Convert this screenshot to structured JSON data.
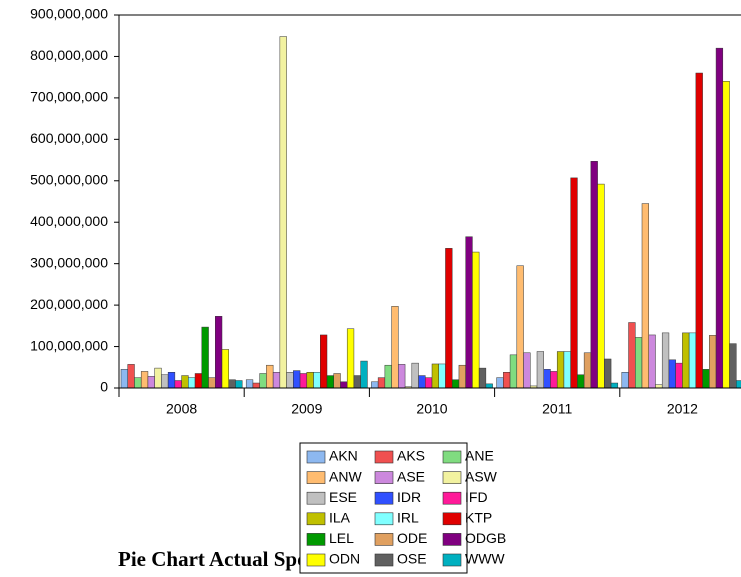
{
  "chart_data": {
    "type": "bar",
    "categories": [
      "2008",
      "2009",
      "2010",
      "2011",
      "2012"
    ],
    "series": [
      {
        "name": "AKN",
        "color": "#8db8f0",
        "values": [
          45000000,
          20000000,
          15000000,
          25000000,
          38000000
        ]
      },
      {
        "name": "AKS",
        "color": "#f05050",
        "values": [
          57000000,
          12000000,
          25000000,
          38000000,
          158000000
        ]
      },
      {
        "name": "ANE",
        "color": "#80dc80",
        "values": [
          25000000,
          35000000,
          55000000,
          80000000,
          122000000
        ]
      },
      {
        "name": "ANW",
        "color": "#ffbc70",
        "values": [
          40000000,
          55000000,
          197000000,
          295000000,
          445000000
        ]
      },
      {
        "name": "ASE",
        "color": "#cc88dd",
        "values": [
          28000000,
          38000000,
          57000000,
          85000000,
          128000000
        ]
      },
      {
        "name": "ASW",
        "color": "#f2f2a0",
        "values": [
          48000000,
          848000000,
          3000000,
          5000000,
          8000000
        ]
      },
      {
        "name": "ESE",
        "color": "#c0c0c0",
        "values": [
          32000000,
          38000000,
          60000000,
          88000000,
          133000000
        ]
      },
      {
        "name": "IDR",
        "color": "#3050ff",
        "values": [
          38000000,
          42000000,
          30000000,
          45000000,
          68000000
        ]
      },
      {
        "name": "IFD",
        "color": "#ff1a99",
        "values": [
          18000000,
          35000000,
          25000000,
          40000000,
          60000000
        ]
      },
      {
        "name": "ILA",
        "color": "#c0c000",
        "values": [
          30000000,
          38000000,
          58000000,
          88000000,
          133000000
        ]
      },
      {
        "name": "IRL",
        "color": "#80ffff",
        "values": [
          25000000,
          38000000,
          58000000,
          88000000,
          133000000
        ]
      },
      {
        "name": "KTP",
        "color": "#e00000",
        "values": [
          35000000,
          128000000,
          337000000,
          507000000,
          760000000
        ]
      },
      {
        "name": "LEL",
        "color": "#009900",
        "values": [
          147000000,
          30000000,
          20000000,
          32000000,
          45000000
        ]
      },
      {
        "name": "ODE",
        "color": "#e0a060",
        "values": [
          25000000,
          35000000,
          55000000,
          85000000,
          127000000
        ]
      },
      {
        "name": "ODGB",
        "color": "#800080",
        "values": [
          173000000,
          15000000,
          365000000,
          547000000,
          820000000
        ]
      },
      {
        "name": "ODN",
        "color": "#ffff00",
        "values": [
          93000000,
          143000000,
          328000000,
          492000000,
          740000000
        ]
      },
      {
        "name": "OSE",
        "color": "#606060",
        "values": [
          20000000,
          30000000,
          48000000,
          70000000,
          107000000
        ]
      },
      {
        "name": "WWW",
        "color": "#00b0c0",
        "values": [
          18000000,
          65000000,
          10000000,
          12000000,
          18000000
        ]
      }
    ],
    "ylim": [
      0,
      900000000
    ],
    "yticks": [
      0,
      {
        "value": 100000000,
        "label": "100,000,000"
      },
      {
        "value": 200000000,
        "label": "200,000,000"
      },
      {
        "value": 300000000,
        "label": "300,000,000"
      },
      {
        "value": 400000000,
        "label": "400,000,000"
      },
      {
        "value": 500000000,
        "label": "500,000,000"
      },
      {
        "value": 600000000,
        "label": "600,000,000"
      },
      {
        "value": 700000000,
        "label": "700,000,000"
      },
      {
        "value": 800000000,
        "label": "800,000,000"
      },
      {
        "value": 900000000,
        "label": "900,000,000"
      }
    ],
    "legend": "bottom"
  },
  "caption": "Pie Chart Actual Spo"
}
